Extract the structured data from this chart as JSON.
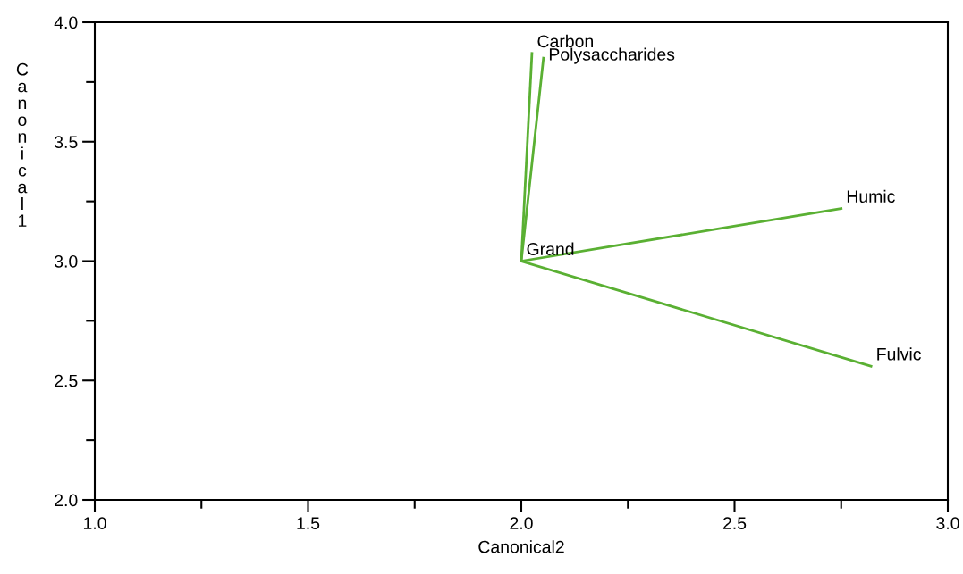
{
  "chart_data": {
    "type": "line",
    "xlabel": "Canonical2",
    "ylabel": "Canonical1",
    "series": [
      {
        "color": "#5ab033",
        "x": [
          2.0,
          2.025
        ],
        "values": [
          3.0,
          3.87
        ]
      },
      {
        "color": "#5ab033",
        "x": [
          2.0,
          2.052
        ],
        "values": [
          3.0,
          3.85
        ]
      },
      {
        "color": "#5ab033",
        "x": [
          2.0,
          2.75
        ],
        "values": [
          3.0,
          3.22
        ]
      },
      {
        "color": "#5ab033",
        "x": [
          2.0,
          2.82
        ],
        "values": [
          3.0,
          2.56
        ]
      }
    ],
    "annotations": [
      {
        "text": "Carbon",
        "x": 2.025,
        "y": 3.87
      },
      {
        "text": "Polysaccharides",
        "x": 2.052,
        "y": 3.85
      },
      {
        "text": "Grand",
        "x": 2.0,
        "y": 3.0
      },
      {
        "text": "Humic",
        "x": 2.75,
        "y": 3.22
      },
      {
        "text": "Fulvic",
        "x": 2.82,
        "y": 2.56
      }
    ],
    "xlim": [
      1.0,
      3.0
    ],
    "xticks": [
      {
        "value": 1.0,
        "label": "1.0"
      },
      1.5,
      {
        "value": 2.0,
        "label": "2.0"
      },
      2.5,
      {
        "value": 3.0,
        "label": "3.0"
      }
    ],
    "ylim": [
      2.0,
      4.0
    ],
    "yticks": [
      {
        "value": 2.0,
        "label": "2.0"
      },
      2.5,
      {
        "value": 3.0,
        "label": "3.0"
      },
      3.5,
      {
        "value": 4.0,
        "label": "4.0"
      }
    ],
    "grid": false,
    "legend": false,
    "marker": "none",
    "line_style": "solid"
  }
}
